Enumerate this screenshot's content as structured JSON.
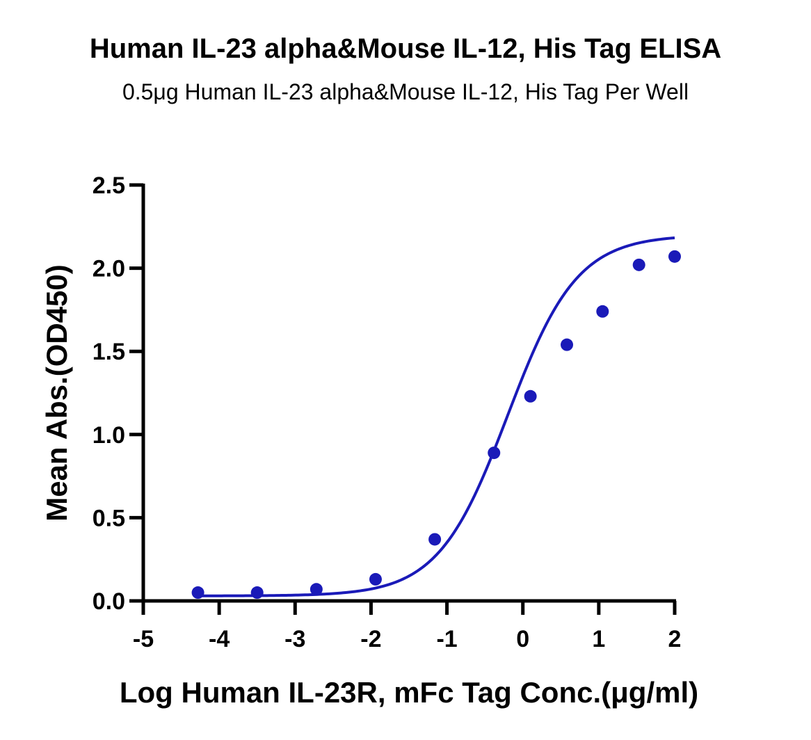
{
  "chart_data": {
    "type": "scatter",
    "title": "Human IL-23 alpha&Mouse IL-12, His Tag ELISA",
    "subtitle": "0.5μg Human IL-23 alpha&Mouse IL-12, His Tag Per Well",
    "xlabel": "Log Human IL-23R, mFc Tag Conc.(μg/ml)",
    "ylabel": "Mean Abs.(OD450)",
    "xlim": [
      -5,
      2
    ],
    "ylim": [
      0,
      2.5
    ],
    "x_ticks": [
      "-5",
      "-4",
      "-3",
      "-2",
      "-1",
      "0",
      "1",
      "2"
    ],
    "y_ticks": [
      "0.0",
      "0.5",
      "1.0",
      "1.5",
      "2.0",
      "2.5"
    ],
    "grid": false,
    "series": [
      {
        "points": [
          {
            "x": -4.28,
            "y": 0.05
          },
          {
            "x": -3.5,
            "y": 0.05
          },
          {
            "x": -2.72,
            "y": 0.07
          },
          {
            "x": -1.94,
            "y": 0.13
          },
          {
            "x": -1.16,
            "y": 0.37
          },
          {
            "x": -0.38,
            "y": 0.89
          },
          {
            "x": 0.1,
            "y": 1.23
          },
          {
            "x": 0.58,
            "y": 1.54
          },
          {
            "x": 1.05,
            "y": 1.74
          },
          {
            "x": 1.53,
            "y": 2.02
          },
          {
            "x": 2.0,
            "y": 2.07
          }
        ],
        "fit_curve": {
          "type": "4PL",
          "bottom": 0.03,
          "top": 2.2,
          "log_ec50": -0.2,
          "hill_slope": 0.95,
          "x_range": [
            -4.28,
            2.0
          ]
        }
      }
    ],
    "colors": {
      "series": "#1a1ab8",
      "axis": "#000000"
    }
  }
}
